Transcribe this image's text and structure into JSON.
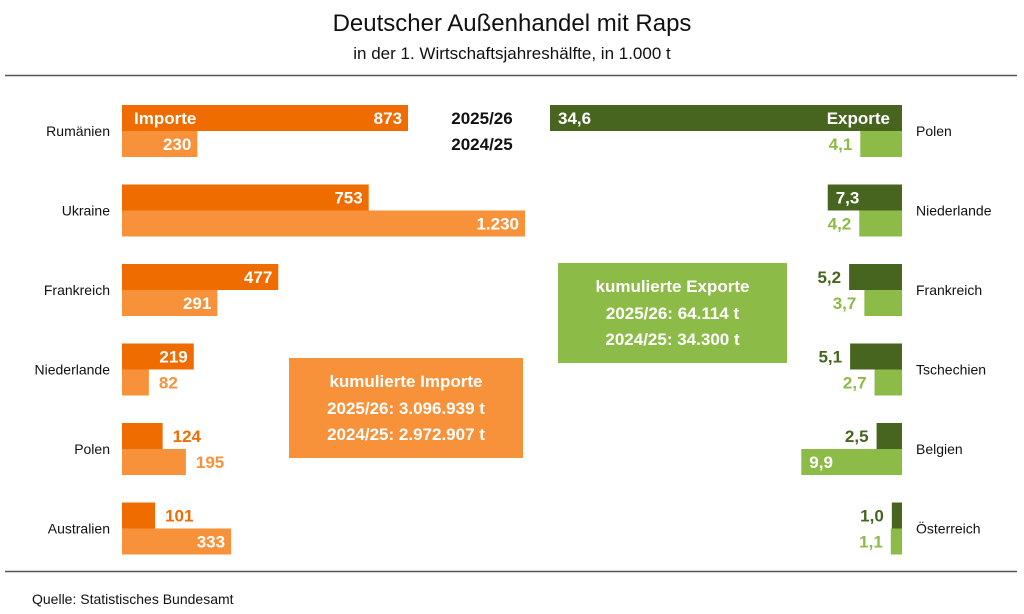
{
  "title": "Deutscher Außenhandel mit Raps",
  "subtitle": "in der 1. Wirtschaftsjahreshälfte, in 1.000 t",
  "source": "Quelle:  Statistisches Bundesamt",
  "colors": {
    "import_current": "#ef6c00",
    "import_previous": "#f7923a",
    "export_current": "#48651f",
    "export_previous": "#8dbb47",
    "rule": "#555555"
  },
  "chart_data": {
    "type": "bar",
    "years": [
      "2025/26",
      "2024/25"
    ],
    "imports": {
      "label": "Importe",
      "categories": [
        "Rumänien",
        "Ukraine",
        "Frankreich",
        "Niederlande",
        "Polen",
        "Australien"
      ],
      "series": [
        {
          "name": "2025/26",
          "values": [
            873,
            753,
            477,
            219,
            124,
            101
          ],
          "labels": [
            "873",
            "753",
            "477",
            "219",
            "124",
            "101"
          ]
        },
        {
          "name": "2024/25",
          "values": [
            230,
            1230,
            291,
            82,
            195,
            333
          ],
          "labels": [
            "230",
            "1.230",
            "291",
            "82",
            "195",
            "333"
          ]
        }
      ],
      "cumulative": {
        "title": "kumulierte Importe",
        "lines": [
          "2025/26: 3.096.939 t",
          "2024/25: 2.972.907 t"
        ]
      }
    },
    "exports": {
      "label": "Exporte",
      "categories": [
        "Polen",
        "Niederlande",
        "Frankreich",
        "Tschechien",
        "Belgien",
        "Österreich"
      ],
      "series": [
        {
          "name": "2025/26",
          "values": [
            34.6,
            7.3,
            5.2,
            5.1,
            2.5,
            1.0
          ],
          "labels": [
            "34,6",
            "7,3",
            "5,2",
            "5,1",
            "2,5",
            "1,0"
          ]
        },
        {
          "name": "2024/25",
          "values": [
            4.1,
            4.2,
            3.7,
            2.7,
            9.9,
            1.1
          ],
          "labels": [
            "4,1",
            "4,2",
            "3,7",
            "2,7",
            "9,9",
            "1,1"
          ]
        }
      ],
      "cumulative": {
        "title": "kumulierte Exporte",
        "lines": [
          "2025/26: 64.114 t",
          "2024/25: 34.300 t"
        ]
      }
    }
  }
}
